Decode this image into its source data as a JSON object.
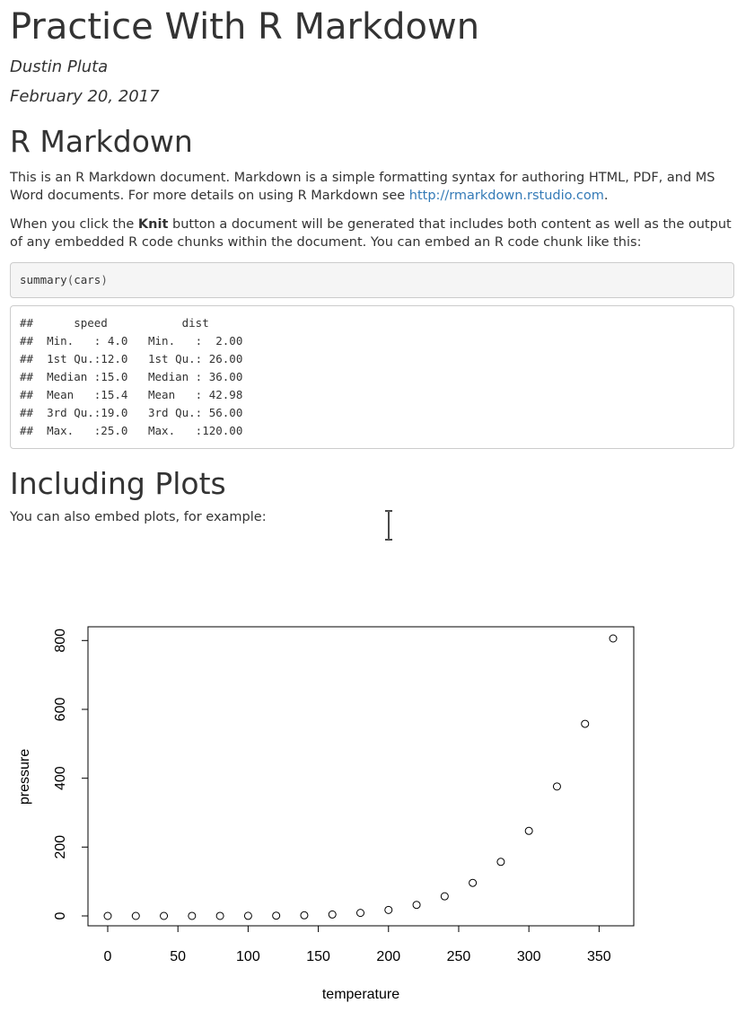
{
  "doc": {
    "title": "Practice With R Markdown",
    "author": "Dustin Pluta",
    "date": "February 20, 2017"
  },
  "section1": {
    "heading": "R Markdown",
    "para1_text": "This is an R Markdown document. Markdown is a simple formatting syntax for authoring HTML, PDF, and MS Word documents. For more details on using R Markdown see ",
    "para1_link": "http://rmarkdown.rstudio.com",
    "para1_end": ".",
    "para2_pre": "When you click the ",
    "para2_bold": "Knit",
    "para2_post": " button a document will be generated that includes both content as well as the output of any embedded R code chunks within the document. You can embed an R code chunk like this:",
    "code_fn": "summary",
    "code_open": "(",
    "code_arg": "cars",
    "code_close": ")",
    "output_lines": [
      "##      speed           dist       ",
      "##  Min.   : 4.0   Min.   :  2.00  ",
      "##  1st Qu.:12.0   1st Qu.: 26.00  ",
      "##  Median :15.0   Median : 36.00  ",
      "##  Mean   :15.4   Mean   : 42.98  ",
      "##  3rd Qu.:19.0   3rd Qu.: 56.00  ",
      "##  Max.   :25.0   Max.   :120.00  "
    ]
  },
  "section2": {
    "heading": "Including Plots",
    "para": "You can also embed plots, for example:"
  },
  "cursor_icon": "text-cursor-icon",
  "chart_data": {
    "type": "scatter",
    "xlabel": "temperature",
    "ylabel": "pressure",
    "x": [
      0,
      20,
      40,
      60,
      80,
      100,
      120,
      140,
      160,
      180,
      200,
      220,
      240,
      260,
      280,
      300,
      320,
      340,
      360
    ],
    "y": [
      0.0002,
      0.0012,
      0.006,
      0.03,
      0.09,
      0.27,
      0.75,
      1.85,
      4.2,
      8.8,
      17.3,
      32.1,
      57,
      96,
      157,
      247,
      376,
      558,
      806
    ],
    "xlim": [
      0,
      360
    ],
    "ylim": [
      0,
      806
    ],
    "xticks": [
      0,
      50,
      100,
      150,
      200,
      250,
      300,
      350
    ],
    "yticks": [
      0,
      200,
      400,
      600,
      800
    ],
    "marker": "open-circle",
    "grid": false,
    "legend": "none"
  }
}
